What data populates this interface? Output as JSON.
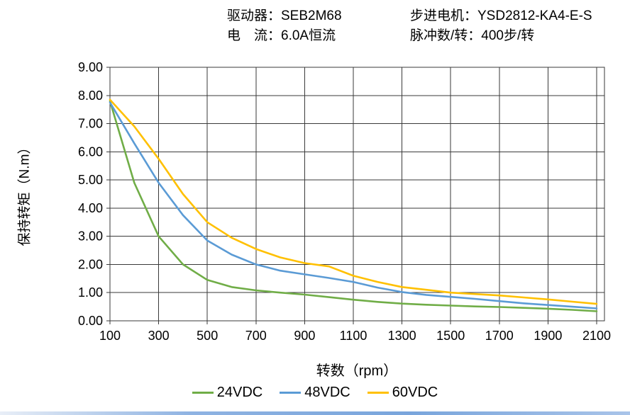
{
  "header": {
    "driver": "驱动器：SEB2M68",
    "motor": "步进电机：YSD2812-KA4-E-S",
    "current": "电　流：6.0A恒流",
    "pulses": "脉冲数/转：400步/转"
  },
  "chart_data": {
    "type": "line",
    "title": "",
    "xlabel": "转数（rpm）",
    "ylabel": "保持转矩（N.m）",
    "xlim": [
      100,
      2100
    ],
    "ylim": [
      0,
      9
    ],
    "x_ticks": [
      100,
      300,
      500,
      700,
      900,
      1100,
      1300,
      1500,
      1700,
      1900,
      2100
    ],
    "y_ticks": [
      0,
      1,
      2,
      3,
      4,
      5,
      6,
      7,
      8,
      9
    ],
    "y_tick_decimals": 2,
    "grid": true,
    "legend_position": "bottom",
    "x": [
      100,
      200,
      300,
      400,
      500,
      600,
      700,
      800,
      900,
      1000,
      1100,
      1200,
      1300,
      1400,
      1500,
      1600,
      1700,
      1800,
      1900,
      2000,
      2100
    ],
    "series": [
      {
        "name": "24VDC",
        "color": "#70AD47",
        "values": [
          7.8,
          4.9,
          3.0,
          2.0,
          1.45,
          1.2,
          1.08,
          1.0,
          0.93,
          0.84,
          0.75,
          0.67,
          0.61,
          0.57,
          0.54,
          0.51,
          0.49,
          0.46,
          0.43,
          0.39,
          0.34
        ]
      },
      {
        "name": "48VDC",
        "color": "#5B9BD5",
        "values": [
          7.75,
          6.3,
          4.9,
          3.75,
          2.85,
          2.35,
          2.0,
          1.78,
          1.65,
          1.52,
          1.38,
          1.18,
          1.02,
          0.92,
          0.85,
          0.78,
          0.7,
          0.62,
          0.56,
          0.5,
          0.44
        ]
      },
      {
        "name": "60VDC",
        "color": "#FFC000",
        "values": [
          7.85,
          6.9,
          5.75,
          4.5,
          3.5,
          2.95,
          2.55,
          2.25,
          2.05,
          1.93,
          1.6,
          1.38,
          1.2,
          1.1,
          1.0,
          0.95,
          0.9,
          0.83,
          0.76,
          0.68,
          0.6
        ]
      }
    ]
  }
}
